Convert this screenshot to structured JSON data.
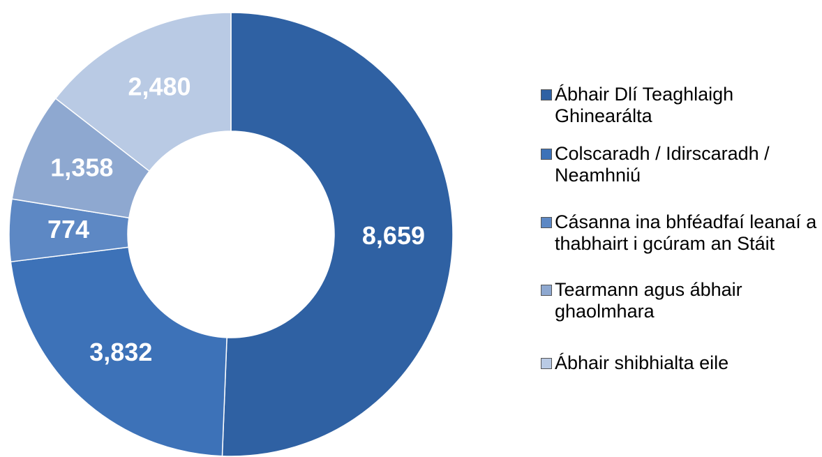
{
  "chart_data": {
    "type": "donut",
    "categories": [
      "Ábhair Dlí Teaghlaigh Ghinearálta",
      "Colscaradh / Idirscaradh / Neamhniú",
      "Cásanna ina bhféadfaí leanaí a thabhairt i gcúram an Stáit",
      "Tearmann agus ábhair ghaolmhara",
      "Ábhair shibhialta eile"
    ],
    "values": [
      8659,
      3832,
      774,
      1358,
      2480
    ],
    "value_labels": [
      "8,659",
      "3,832",
      "774",
      "1,358",
      "2,480"
    ],
    "colors": [
      "#2f61a3",
      "#3d72b8",
      "#5d88c4",
      "#8ea8d0",
      "#b9cae4"
    ],
    "legend": "right"
  }
}
